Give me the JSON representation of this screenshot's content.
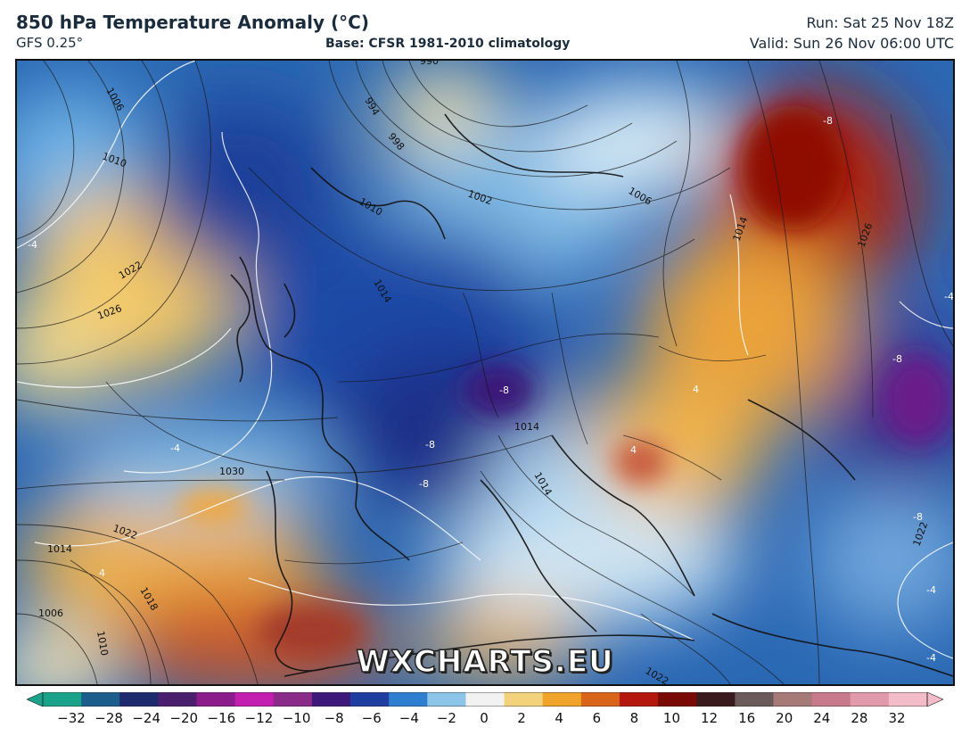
{
  "header": {
    "title": "850 hPa Temperature Anomaly (°C)",
    "model": "GFS 0.25°",
    "base": "Base: CFSR 1981-2010 climatology",
    "run": "Run: Sat 25 Nov 18Z",
    "valid": "Valid: Sun 26 Nov 06:00 UTC"
  },
  "watermark": "WXCHARTS.EU",
  "colorbar": {
    "ticks": [
      "−32",
      "−28",
      "−24",
      "−20",
      "−16",
      "−12",
      "−10",
      "−8",
      "−6",
      "−4",
      "−2",
      "0",
      "2",
      "4",
      "6",
      "8",
      "10",
      "12",
      "16",
      "20",
      "24",
      "28",
      "32"
    ],
    "colors": [
      "#1aa38a",
      "#1c5e8c",
      "#1e2a6e",
      "#4a1f6e",
      "#8c1c8c",
      "#c21fb0",
      "#8a2b8a",
      "#3d1a7a",
      "#1f3fa0",
      "#2f7fd0",
      "#8cc4ea",
      "#f2f2f2",
      "#f2d27a",
      "#f0a52a",
      "#d9651a",
      "#b3170e",
      "#7a0a06",
      "#3a1a1a",
      "#6a5a5a",
      "#a77a7a",
      "#c87a8a",
      "#e09aaa",
      "#f2bcc8"
    ]
  },
  "isobar_labels": [
    "1006",
    "1014",
    "1010",
    "1022",
    "1026",
    "990",
    "994",
    "998",
    "1002",
    "1010",
    "1014",
    "1006",
    "1030",
    "1022",
    "1014",
    "1018",
    "1006",
    "1010",
    "1022",
    "1026",
    "1014",
    "1014",
    "1022"
  ],
  "anomaly_labels": [
    "-4",
    "-4",
    "-8",
    "-8",
    "-8",
    "-8",
    "-4",
    "-8",
    "-8",
    "-4",
    "4",
    "4",
    "4",
    "-4"
  ]
}
